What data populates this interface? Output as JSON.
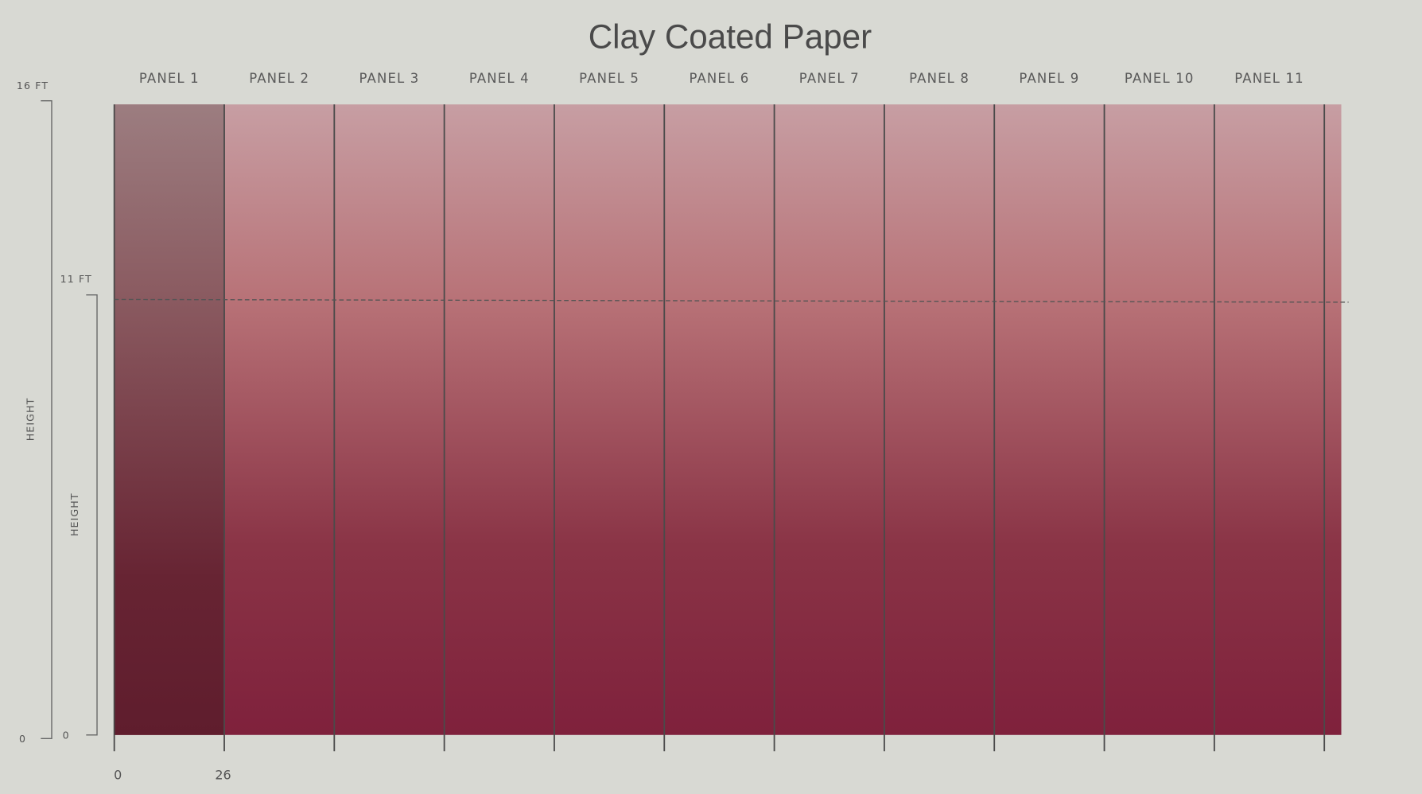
{
  "title": "Clay Coated Paper",
  "panels": [
    "PANEL 1",
    "PANEL 2",
    "PANEL 3",
    "PANEL 4",
    "PANEL 5",
    "PANEL 6",
    "PANEL 7",
    "PANEL 8",
    "PANEL 9",
    "PANEL 10",
    "PANEL 11"
  ],
  "height_rulers": [
    {
      "top": "16 FT",
      "bottom": "0",
      "label": "HEIGHT"
    },
    {
      "top": "11 FT",
      "bottom": "0",
      "label": "HEIGHT"
    }
  ],
  "width_ruler": [
    "0",
    "26"
  ]
}
